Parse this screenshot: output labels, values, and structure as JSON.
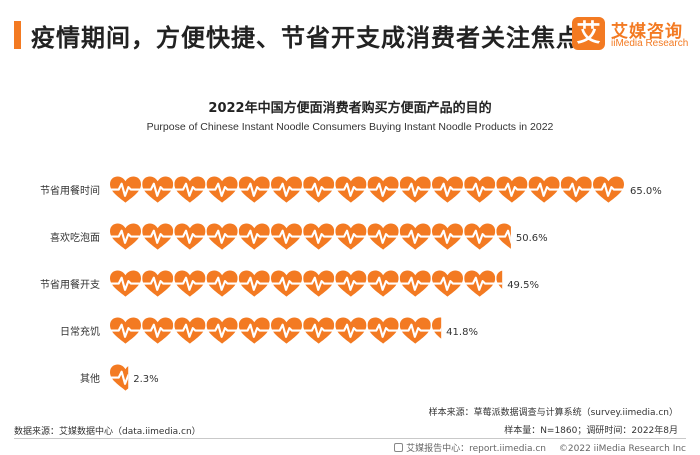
{
  "header": {
    "title": "疫情期间，方便快捷、节省开支成消费者关注焦点",
    "accent_color": "#f37a22"
  },
  "logo": {
    "mark": "艾",
    "name_cn": "艾媒咨询",
    "name_en": "iiMedia Research"
  },
  "chart_data": {
    "type": "bar",
    "title": "2022年中国方便面消费者购买方便面产品的目的",
    "subtitle": "Purpose of Chinese Instant Noodle Consumers Buying Instant Noodle Products in 2022",
    "categories": [
      "节省用餐时间",
      "喜欢吃泡面",
      "节省用餐开支",
      "日常充饥",
      "其他"
    ],
    "values": [
      65.0,
      50.6,
      49.5,
      41.8,
      2.3
    ],
    "value_labels": [
      "65.0%",
      "50.6%",
      "49.5%",
      "41.8%",
      "2.3%"
    ],
    "unit": "%",
    "xlim": [
      0,
      65
    ],
    "mark": "heart-pulse-icon",
    "bar_color": "#f37a22",
    "grid": false,
    "legend": "none"
  },
  "notes": {
    "sample_source": "样本来源：草莓派数据调查与计算系统（survey.iimedia.cn）",
    "sample_size": "样本量：N=1860；调研时间：2022年8月",
    "data_source": "数据来源：艾媒数据中心（data.iimedia.cn）"
  },
  "footer": {
    "report_center": "艾媒报告中心：report.iimedia.cn",
    "copyright": "©2022  iiMedia Research  Inc"
  }
}
